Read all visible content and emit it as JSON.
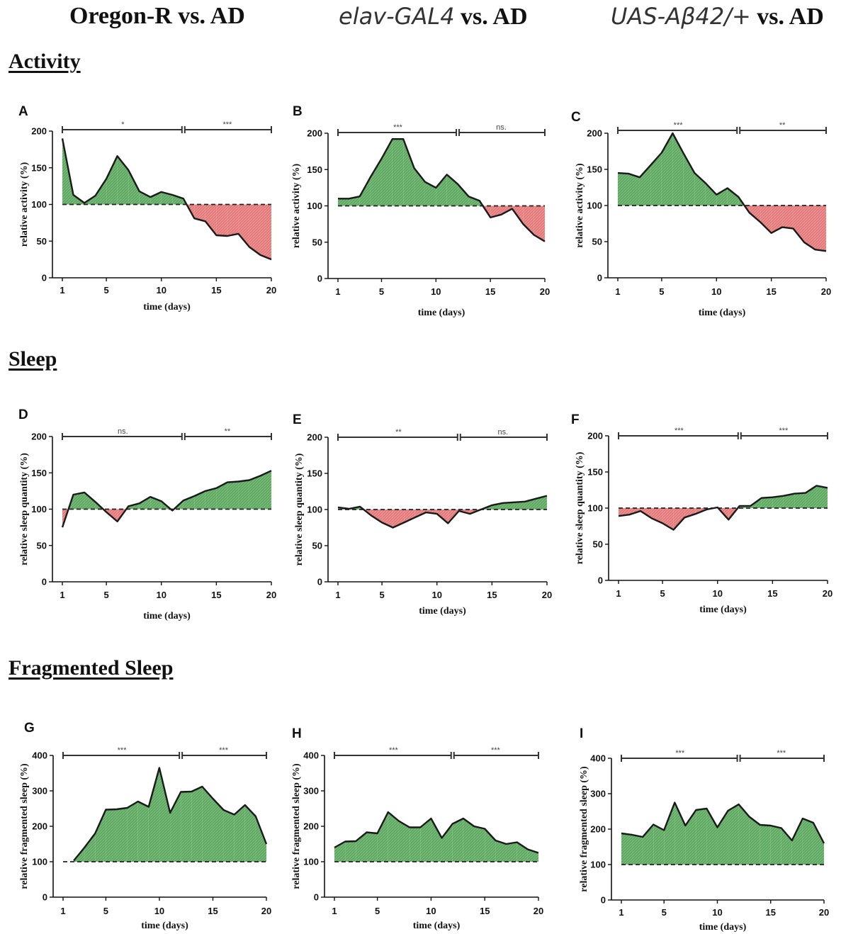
{
  "columns": [
    {
      "prefix": "",
      "suffix": "Oregon-R vs. AD"
    },
    {
      "prefix": "elav-GAL4",
      "suffix": "vs. AD"
    },
    {
      "prefix": "UAS-Aβ42/+",
      "suffix": "vs. AD"
    }
  ],
  "sections": [
    "Activity",
    "Sleep",
    "Fragmented Sleep"
  ],
  "colors": {
    "above": "#4f9a52",
    "below": "#e06d6d",
    "line": "#1a1a1a"
  },
  "chart_data": [
    {
      "id": "A",
      "type": "area",
      "xlabel": "time (days)",
      "ylabel": "relative activity (%)",
      "ylim": [
        0,
        200
      ],
      "yticks": [
        0,
        50,
        100,
        150,
        200
      ],
      "xticks": [
        1,
        5,
        10,
        15,
        20
      ],
      "baseline": 100,
      "significance": [
        "*",
        "***"
      ],
      "x": [
        1,
        2,
        3,
        4,
        5,
        6,
        7,
        8,
        9,
        10,
        11,
        12,
        13,
        14,
        15,
        16,
        17,
        18,
        19,
        20
      ],
      "values": [
        190,
        113,
        102,
        112,
        135,
        166,
        147,
        118,
        110,
        117,
        113,
        108,
        81,
        77,
        58,
        57,
        60,
        42,
        31,
        25
      ]
    },
    {
      "id": "B",
      "type": "area",
      "xlabel": "time (days)",
      "ylabel": "relative activity (%)",
      "ylim": [
        0,
        200
      ],
      "yticks": [
        0,
        50,
        100,
        150,
        200
      ],
      "xticks": [
        1,
        5,
        10,
        15,
        20
      ],
      "baseline": 100,
      "significance": [
        "***",
        "ns."
      ],
      "x": [
        1,
        2,
        3,
        4,
        5,
        6,
        7,
        8,
        9,
        10,
        11,
        12,
        13,
        14,
        15,
        16,
        17,
        18,
        19,
        20
      ],
      "values": [
        110,
        110,
        113,
        140,
        165,
        192,
        192,
        152,
        133,
        125,
        143,
        130,
        113,
        107,
        84,
        88,
        96,
        75,
        60,
        51
      ]
    },
    {
      "id": "C",
      "type": "area",
      "xlabel": "time (days)",
      "ylabel": "relative activity (%)",
      "ylim": [
        0,
        200
      ],
      "yticks": [
        0,
        50,
        100,
        150,
        200
      ],
      "xticks": [
        1,
        5,
        10,
        15,
        20
      ],
      "baseline": 100,
      "significance": [
        "***",
        "**"
      ],
      "x": [
        1,
        2,
        3,
        4,
        5,
        6,
        7,
        8,
        9,
        10,
        11,
        12,
        13,
        14,
        15,
        16,
        17,
        18,
        19,
        20
      ],
      "values": [
        145,
        144,
        139,
        156,
        173,
        200,
        172,
        145,
        131,
        115,
        124,
        112,
        90,
        77,
        62,
        70,
        68,
        49,
        39,
        37
      ]
    },
    {
      "id": "D",
      "type": "area",
      "xlabel": "time (days)",
      "ylabel": "relative sleep quantity (%)",
      "ylim": [
        0,
        200
      ],
      "yticks": [
        0,
        50,
        100,
        150,
        200
      ],
      "xticks": [
        1,
        5,
        10,
        15,
        20
      ],
      "baseline": 100,
      "significance": [
        "ns.",
        "**"
      ],
      "x": [
        1,
        2,
        3,
        4,
        5,
        6,
        7,
        8,
        9,
        10,
        11,
        12,
        13,
        14,
        15,
        16,
        17,
        18,
        19,
        20
      ],
      "values": [
        75,
        120,
        123,
        110,
        96,
        83,
        104,
        108,
        117,
        111,
        98,
        112,
        118,
        125,
        129,
        137,
        138,
        140,
        146,
        153
      ]
    },
    {
      "id": "E",
      "type": "area",
      "xlabel": "time (days)",
      "ylabel": "relative sleep quantity (%)",
      "ylim": [
        0,
        200
      ],
      "yticks": [
        0,
        50,
        100,
        150,
        200
      ],
      "xticks": [
        1,
        5,
        10,
        15,
        20
      ],
      "baseline": 100,
      "significance": [
        "**",
        "ns."
      ],
      "x": [
        1,
        2,
        3,
        4,
        5,
        6,
        7,
        8,
        9,
        10,
        11,
        12,
        13,
        14,
        15,
        16,
        17,
        18,
        19,
        20
      ],
      "values": [
        103,
        101,
        104,
        92,
        82,
        75,
        82,
        89,
        96,
        94,
        81,
        98,
        94,
        100,
        106,
        109,
        110,
        111,
        115,
        119
      ]
    },
    {
      "id": "F",
      "type": "area",
      "xlabel": "time (days)",
      "ylabel": "relative sleep quantity (%)",
      "ylim": [
        0,
        200
      ],
      "yticks": [
        0,
        50,
        100,
        150,
        200
      ],
      "xticks": [
        1,
        5,
        10,
        15,
        20
      ],
      "baseline": 100,
      "significance": [
        "***",
        "***"
      ],
      "x": [
        1,
        2,
        3,
        4,
        5,
        6,
        7,
        8,
        9,
        10,
        11,
        12,
        13,
        14,
        15,
        16,
        17,
        18,
        19,
        20
      ],
      "values": [
        89,
        91,
        96,
        86,
        79,
        70,
        87,
        92,
        98,
        101,
        84,
        103,
        103,
        114,
        115,
        117,
        120,
        121,
        131,
        128
      ]
    },
    {
      "id": "G",
      "type": "area",
      "xlabel": "time (days)",
      "ylabel": "relative fragmented sleep (%)",
      "ylim": [
        0,
        400
      ],
      "yticks": [
        0,
        100,
        200,
        300,
        400
      ],
      "xticks": [
        1,
        5,
        10,
        15,
        20
      ],
      "baseline": 100,
      "significance": [
        "***",
        "***"
      ],
      "x": [
        2,
        3,
        4,
        5,
        6,
        7,
        8,
        9,
        10,
        11,
        12,
        13,
        14,
        15,
        16,
        17,
        18,
        19,
        20
      ],
      "values": [
        103,
        140,
        180,
        247,
        248,
        252,
        270,
        255,
        365,
        238,
        297,
        298,
        312,
        278,
        246,
        233,
        260,
        228,
        150
      ]
    },
    {
      "id": "H",
      "type": "area",
      "xlabel": "time (days)",
      "ylabel": "relative fragmented sleep (%)",
      "ylim": [
        0,
        400
      ],
      "yticks": [
        0,
        100,
        200,
        300,
        400
      ],
      "xticks": [
        1,
        5,
        10,
        15,
        20
      ],
      "baseline": 100,
      "significance": [
        "***",
        "***"
      ],
      "x": [
        1,
        2,
        3,
        4,
        5,
        6,
        7,
        8,
        9,
        10,
        11,
        12,
        13,
        14,
        15,
        16,
        17,
        18,
        19,
        20
      ],
      "values": [
        140,
        157,
        158,
        183,
        180,
        240,
        215,
        197,
        197,
        222,
        167,
        207,
        222,
        200,
        193,
        160,
        150,
        155,
        135,
        125
      ]
    },
    {
      "id": "I",
      "type": "area",
      "xlabel": "time (days)",
      "ylabel": "relative fragmented sleep (%)",
      "ylim": [
        0,
        400
      ],
      "yticks": [
        0,
        100,
        200,
        300,
        400
      ],
      "xticks": [
        1,
        5,
        10,
        15,
        20
      ],
      "baseline": 100,
      "significance": [
        "***",
        "***"
      ],
      "x": [
        1,
        2,
        3,
        4,
        5,
        6,
        7,
        8,
        9,
        10,
        11,
        12,
        13,
        14,
        15,
        16,
        17,
        18,
        19,
        20
      ],
      "values": [
        188,
        184,
        178,
        213,
        197,
        275,
        210,
        254,
        258,
        205,
        252,
        270,
        235,
        212,
        210,
        203,
        168,
        230,
        218,
        160
      ]
    }
  ]
}
